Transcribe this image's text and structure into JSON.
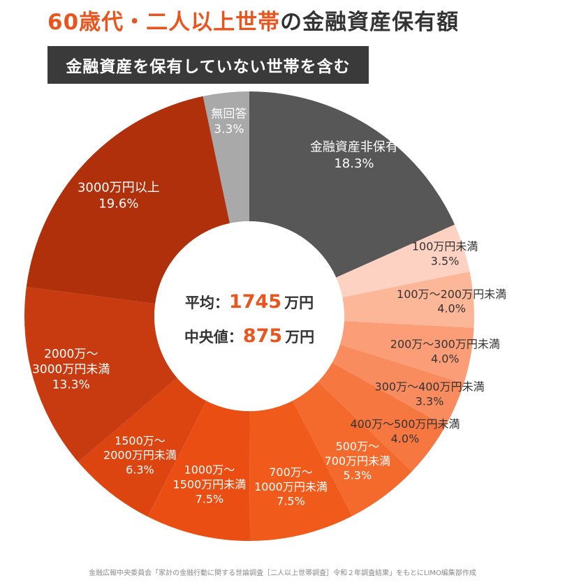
{
  "title": {
    "accent": "60歳代・二人以上世帯",
    "rest": "の金融資産保有額"
  },
  "badge": "金融資産を保有していない世帯を含む",
  "center": {
    "avg_label": "平均：",
    "avg_value": "1745",
    "avg_unit": "万円",
    "median_label": "中央値：",
    "median_value": "875",
    "median_unit": "万円"
  },
  "source": "金融広報中央委員会「家計の金融行動に関する世論調査［二人以上世帯調査］令和２年調査結果」をもとにLIMO編集部作成",
  "chart_data": {
    "type": "pie",
    "donut": true,
    "title": "60歳代・二人以上世帯の金融資産保有額",
    "unit": "%",
    "slices": [
      {
        "label": "金融資産非保有",
        "value": 18.3,
        "value_text": "18.3%",
        "color": "#575757",
        "label_color": "#ffffff"
      },
      {
        "label": "100万円未満",
        "value": 3.5,
        "value_text": "3.5%",
        "color": "#fdd2c2",
        "label_color": "#333333"
      },
      {
        "label": "100万～200万円未満",
        "value": 4.0,
        "value_text": "4.0%",
        "color": "#fcb698",
        "label_color": "#333333"
      },
      {
        "label": "200万～300万円未満",
        "value": 4.0,
        "value_text": "4.0%",
        "color": "#fb9e78",
        "label_color": "#333333"
      },
      {
        "label": "300万～400万円未満",
        "value": 3.3,
        "value_text": "3.3%",
        "color": "#f98c5f",
        "label_color": "#333333"
      },
      {
        "label": "400万～500万円未満",
        "value": 4.0,
        "value_text": "4.0%",
        "color": "#f6773f",
        "label_color": "#333333"
      },
      {
        "label": "500万～700万円未満",
        "value": 5.3,
        "value_text": "5.3%",
        "color": "#f4692c",
        "label_color": "#ffffff"
      },
      {
        "label": "700万～1000万円未満",
        "value": 7.5,
        "value_text": "7.5%",
        "color": "#f05a1a",
        "label_color": "#ffffff"
      },
      {
        "label": "1000万～1500万円未満",
        "value": 7.5,
        "value_text": "7.5%",
        "color": "#ea4e12",
        "label_color": "#ffffff"
      },
      {
        "label": "1500万～2000万円未満",
        "value": 6.3,
        "value_text": "6.3%",
        "color": "#dc4510",
        "label_color": "#ffffff"
      },
      {
        "label": "2000万～3000万円未満",
        "value": 13.3,
        "value_text": "13.3%",
        "color": "#c83a0f",
        "label_color": "#ffffff"
      },
      {
        "label": "3000万円以上",
        "value": 19.6,
        "value_text": "19.6%",
        "color": "#b0300b",
        "label_color": "#ffffff"
      },
      {
        "label": "無回答",
        "value": 3.3,
        "value_text": "3.3%",
        "color": "#a9a9a9",
        "label_color": "#ffffff"
      }
    ]
  }
}
